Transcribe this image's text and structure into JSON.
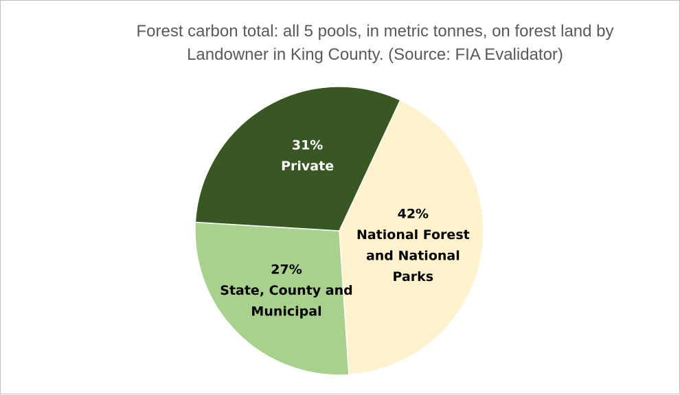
{
  "chart_data": {
    "type": "pie",
    "title_lines": [
      "Forest carbon total: all 5 pools, in metric tonnes, on forest land by",
      "Landowner in King County.  (Source: FIA Evalidator)"
    ],
    "slices": [
      {
        "percent_label": "42%",
        "label_lines": [
          "National Forest",
          "and National",
          "Parks"
        ],
        "value": 42,
        "color": "#FFF2CC",
        "text_color": "#000000"
      },
      {
        "percent_label": "27%",
        "label_lines": [
          "State, County and",
          "Municipal"
        ],
        "value": 27,
        "color": "#A9D18E",
        "text_color": "#000000"
      },
      {
        "percent_label": "31%",
        "label_lines": [
          "Private"
        ],
        "value": 31,
        "color": "#385723",
        "text_color": "#FFFFFF"
      }
    ],
    "start_angle_deg": 25,
    "direction": "clockwise",
    "legend": "none"
  }
}
